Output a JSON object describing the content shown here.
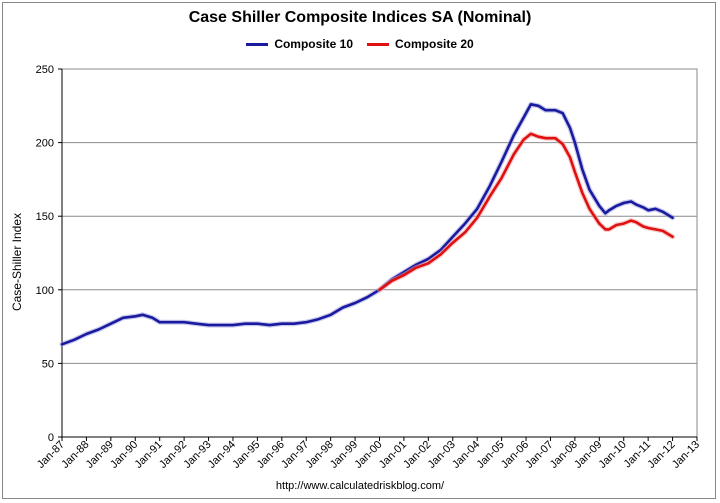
{
  "chart_data": {
    "type": "line",
    "title": "Case Shiller Composite Indices SA (Nominal)",
    "ylabel": "Case-Shiller Index",
    "xlabel": "",
    "ylim": [
      0,
      250
    ],
    "yticks": [
      0,
      50,
      100,
      150,
      200,
      250
    ],
    "xlim": [
      1987.0,
      2013.0
    ],
    "xtick_labels": [
      "Jan-87",
      "Jan-88",
      "Jan-89",
      "Jan-90",
      "Jan-91",
      "Jan-92",
      "Jan-93",
      "Jan-94",
      "Jan-95",
      "Jan-96",
      "Jan-97",
      "Jan-98",
      "Jan-99",
      "Jan-00",
      "Jan-01",
      "Jan-02",
      "Jan-03",
      "Jan-04",
      "Jan-05",
      "Jan-06",
      "Jan-07",
      "Jan-08",
      "Jan-09",
      "Jan-10",
      "Jan-11",
      "Jan-12",
      "Jan-13"
    ],
    "grid": true,
    "legend": "top-center",
    "series": [
      {
        "name": "Composite 10",
        "color": "#1a1aa0",
        "x": [
          1987.0,
          1987.5,
          1988.0,
          1988.5,
          1989.0,
          1989.5,
          1990.0,
          1990.3,
          1990.7,
          1991.0,
          1991.5,
          1992.0,
          1992.5,
          1993.0,
          1993.5,
          1994.0,
          1994.5,
          1995.0,
          1995.5,
          1996.0,
          1996.5,
          1997.0,
          1997.5,
          1998.0,
          1998.5,
          1999.0,
          1999.5,
          2000.0,
          2000.5,
          2001.0,
          2001.5,
          2002.0,
          2002.5,
          2003.0,
          2003.5,
          2004.0,
          2004.5,
          2005.0,
          2005.5,
          2005.9,
          2006.2,
          2006.5,
          2006.8,
          2007.2,
          2007.5,
          2007.8,
          2008.0,
          2008.3,
          2008.6,
          2009.0,
          2009.25,
          2009.4,
          2009.7,
          2010.0,
          2010.3,
          2010.5,
          2010.8,
          2011.0,
          2011.3,
          2011.6,
          2011.9,
          2012.0
        ],
        "values": [
          63,
          66,
          70,
          73,
          77,
          81,
          82,
          83,
          81,
          78,
          78,
          78,
          77,
          76,
          76,
          76,
          77,
          77,
          76,
          77,
          77,
          78,
          80,
          83,
          88,
          91,
          95,
          100,
          107,
          112,
          117,
          121,
          127,
          136,
          145,
          155,
          170,
          187,
          205,
          217,
          226,
          225,
          222,
          222,
          220,
          210,
          200,
          182,
          168,
          157,
          152,
          154,
          157,
          159,
          160,
          158,
          156,
          154,
          155,
          153,
          150,
          149
        ]
      },
      {
        "name": "Composite 20",
        "color": "#e01010",
        "x": [
          2000.0,
          2000.5,
          2001.0,
          2001.5,
          2002.0,
          2002.5,
          2003.0,
          2003.5,
          2004.0,
          2004.5,
          2005.0,
          2005.5,
          2005.9,
          2006.2,
          2006.5,
          2006.8,
          2007.2,
          2007.5,
          2007.8,
          2008.0,
          2008.3,
          2008.6,
          2009.0,
          2009.25,
          2009.4,
          2009.7,
          2010.0,
          2010.3,
          2010.5,
          2010.8,
          2011.0,
          2011.3,
          2011.6,
          2011.9,
          2012.0
        ],
        "values": [
          100,
          106,
          110,
          115,
          118,
          124,
          132,
          139,
          149,
          163,
          176,
          192,
          202,
          206,
          204,
          203,
          203,
          199,
          190,
          180,
          166,
          155,
          145,
          141,
          141,
          144,
          145,
          147,
          146,
          143,
          142,
          141,
          140,
          137,
          136
        ]
      }
    ]
  },
  "source": "http://www.calculatedriskblog.com/"
}
